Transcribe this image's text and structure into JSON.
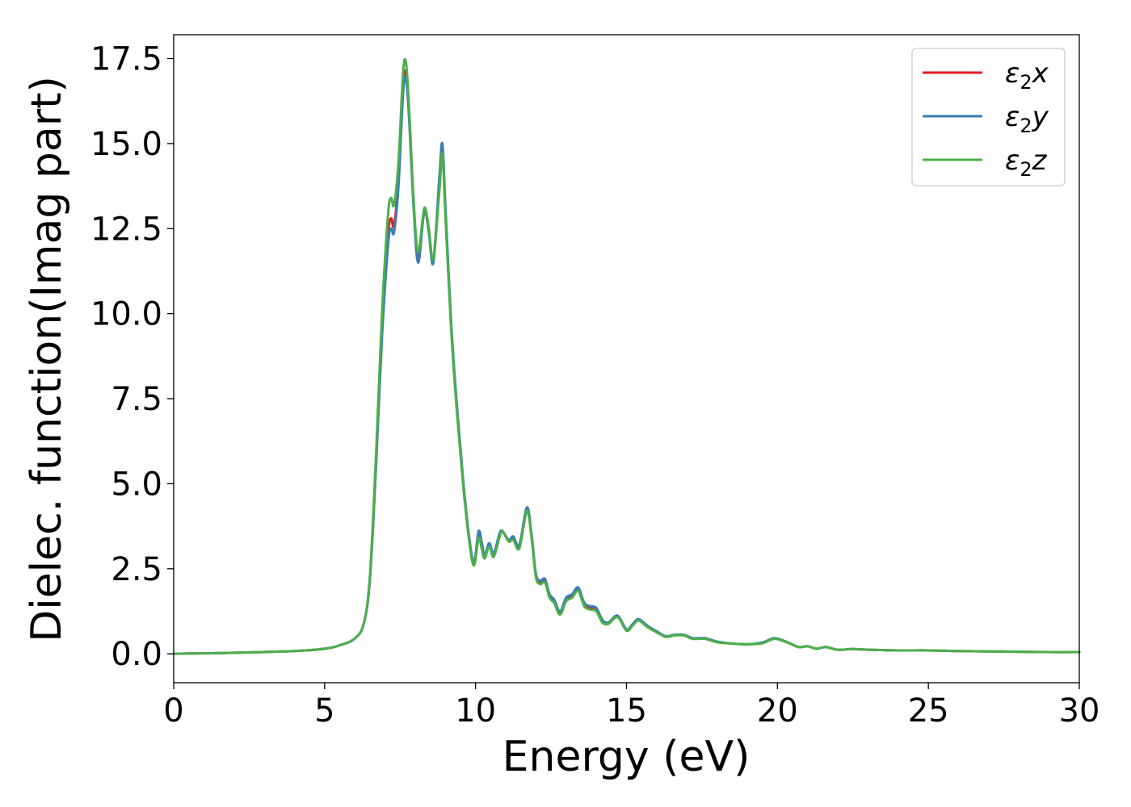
{
  "chart_data": {
    "type": "line",
    "title": "",
    "xlabel": "Energy (eV)",
    "ylabel": "Dielec. function(Imag part)",
    "xlim": [
      0,
      30
    ],
    "ylim": [
      -0.85,
      18.2
    ],
    "x_ticks": [
      0,
      5,
      10,
      15,
      20,
      25,
      30
    ],
    "x_tick_labels": [
      "0",
      "5",
      "10",
      "15",
      "20",
      "25",
      "30"
    ],
    "y_ticks": [
      0.0,
      2.5,
      5.0,
      7.5,
      10.0,
      12.5,
      15.0,
      17.5
    ],
    "y_tick_labels": [
      "0.0",
      "2.5",
      "5.0",
      "7.5",
      "10.0",
      "12.5",
      "15.0",
      "17.5"
    ],
    "grid": false,
    "legend_position": "top-right",
    "series": [
      {
        "name": "ε2x",
        "legend_base": "ε",
        "legend_sub": "2",
        "legend_suffix": "x",
        "color": "#e41a1c",
        "points": [
          [
            0,
            0
          ],
          [
            2,
            0.03
          ],
          [
            4,
            0.08
          ],
          [
            5,
            0.15
          ],
          [
            5.5,
            0.25
          ],
          [
            6,
            0.45
          ],
          [
            6.3,
            0.9
          ],
          [
            6.5,
            2.2
          ],
          [
            6.7,
            5.5
          ],
          [
            6.9,
            9.5
          ],
          [
            7.1,
            12.3
          ],
          [
            7.2,
            12.8
          ],
          [
            7.3,
            12.6
          ],
          [
            7.45,
            14
          ],
          [
            7.6,
            16.8
          ],
          [
            7.7,
            17.0
          ],
          [
            7.8,
            15.8
          ],
          [
            7.95,
            13.2
          ],
          [
            8.1,
            11.6
          ],
          [
            8.3,
            13.0
          ],
          [
            8.45,
            12.5
          ],
          [
            8.6,
            11.5
          ],
          [
            8.8,
            13.8
          ],
          [
            8.9,
            14.9
          ],
          [
            9.0,
            13.0
          ],
          [
            9.2,
            9.5
          ],
          [
            9.4,
            7.0
          ],
          [
            9.6,
            4.9
          ],
          [
            9.8,
            3.3
          ],
          [
            9.95,
            2.65
          ],
          [
            10.1,
            3.5
          ],
          [
            10.2,
            3.2
          ],
          [
            10.3,
            2.85
          ],
          [
            10.45,
            3.2
          ],
          [
            10.6,
            2.9
          ],
          [
            10.8,
            3.5
          ],
          [
            10.9,
            3.6
          ],
          [
            11.1,
            3.3
          ],
          [
            11.25,
            3.4
          ],
          [
            11.45,
            3.15
          ],
          [
            11.7,
            4.25
          ],
          [
            11.85,
            3.5
          ],
          [
            12.0,
            2.3
          ],
          [
            12.15,
            2.1
          ],
          [
            12.3,
            2.15
          ],
          [
            12.45,
            1.7
          ],
          [
            12.6,
            1.55
          ],
          [
            12.8,
            1.2
          ],
          [
            13.0,
            1.6
          ],
          [
            13.2,
            1.7
          ],
          [
            13.4,
            1.9
          ],
          [
            13.6,
            1.45
          ],
          [
            13.8,
            1.35
          ],
          [
            14.0,
            1.3
          ],
          [
            14.2,
            0.95
          ],
          [
            14.4,
            0.9
          ],
          [
            14.7,
            1.1
          ],
          [
            15.0,
            0.7
          ],
          [
            15.2,
            0.85
          ],
          [
            15.4,
            1.0
          ],
          [
            15.7,
            0.8
          ],
          [
            16.0,
            0.65
          ],
          [
            16.3,
            0.5
          ],
          [
            16.6,
            0.55
          ],
          [
            16.9,
            0.55
          ],
          [
            17.2,
            0.45
          ],
          [
            17.6,
            0.45
          ],
          [
            18.0,
            0.35
          ],
          [
            18.5,
            0.3
          ],
          [
            19.0,
            0.28
          ],
          [
            19.5,
            0.32
          ],
          [
            19.9,
            0.45
          ],
          [
            20.3,
            0.35
          ],
          [
            20.7,
            0.2
          ],
          [
            21.0,
            0.22
          ],
          [
            21.3,
            0.15
          ],
          [
            21.6,
            0.2
          ],
          [
            22.0,
            0.12
          ],
          [
            22.5,
            0.14
          ],
          [
            23,
            0.12
          ],
          [
            24,
            0.1
          ],
          [
            25,
            0.1
          ],
          [
            26,
            0.08
          ],
          [
            27,
            0.07
          ],
          [
            28,
            0.06
          ],
          [
            29,
            0.05
          ],
          [
            30,
            0.05
          ]
        ]
      },
      {
        "name": "ε2y",
        "legend_base": "ε",
        "legend_sub": "2",
        "legend_suffix": "y",
        "color": "#377eb8",
        "points": [
          [
            0,
            0
          ],
          [
            2,
            0.03
          ],
          [
            4,
            0.08
          ],
          [
            5,
            0.15
          ],
          [
            5.5,
            0.25
          ],
          [
            6,
            0.45
          ],
          [
            6.3,
            0.9
          ],
          [
            6.5,
            2.2
          ],
          [
            6.7,
            5.5
          ],
          [
            6.9,
            9.3
          ],
          [
            7.1,
            12.0
          ],
          [
            7.2,
            12.5
          ],
          [
            7.3,
            12.4
          ],
          [
            7.45,
            13.8
          ],
          [
            7.6,
            16.5
          ],
          [
            7.7,
            16.9
          ],
          [
            7.8,
            15.7
          ],
          [
            7.95,
            13.1
          ],
          [
            8.1,
            11.5
          ],
          [
            8.3,
            13.0
          ],
          [
            8.45,
            12.4
          ],
          [
            8.6,
            11.5
          ],
          [
            8.8,
            14.0
          ],
          [
            8.9,
            15.0
          ],
          [
            9.0,
            13.2
          ],
          [
            9.2,
            9.6
          ],
          [
            9.4,
            7.1
          ],
          [
            9.6,
            5.0
          ],
          [
            9.8,
            3.35
          ],
          [
            9.95,
            2.7
          ],
          [
            10.1,
            3.6
          ],
          [
            10.2,
            3.3
          ],
          [
            10.3,
            2.9
          ],
          [
            10.45,
            3.25
          ],
          [
            10.6,
            2.95
          ],
          [
            10.8,
            3.55
          ],
          [
            10.9,
            3.6
          ],
          [
            11.1,
            3.35
          ],
          [
            11.25,
            3.45
          ],
          [
            11.45,
            3.2
          ],
          [
            11.7,
            4.3
          ],
          [
            11.85,
            3.55
          ],
          [
            12.0,
            2.35
          ],
          [
            12.15,
            2.15
          ],
          [
            12.3,
            2.2
          ],
          [
            12.45,
            1.75
          ],
          [
            12.6,
            1.6
          ],
          [
            12.8,
            1.25
          ],
          [
            13.0,
            1.65
          ],
          [
            13.2,
            1.75
          ],
          [
            13.4,
            1.95
          ],
          [
            13.6,
            1.5
          ],
          [
            13.8,
            1.4
          ],
          [
            14.0,
            1.35
          ],
          [
            14.2,
            1.0
          ],
          [
            14.4,
            0.92
          ],
          [
            14.7,
            1.12
          ],
          [
            15.0,
            0.72
          ],
          [
            15.2,
            0.87
          ],
          [
            15.4,
            1.02
          ],
          [
            15.7,
            0.82
          ],
          [
            16.0,
            0.66
          ],
          [
            16.3,
            0.52
          ],
          [
            16.6,
            0.56
          ],
          [
            16.9,
            0.56
          ],
          [
            17.2,
            0.46
          ],
          [
            17.6,
            0.46
          ],
          [
            18.0,
            0.36
          ],
          [
            18.5,
            0.3
          ],
          [
            19.0,
            0.28
          ],
          [
            19.5,
            0.33
          ],
          [
            19.9,
            0.46
          ],
          [
            20.3,
            0.35
          ],
          [
            20.7,
            0.2
          ],
          [
            21.0,
            0.22
          ],
          [
            21.3,
            0.15
          ],
          [
            21.6,
            0.2
          ],
          [
            22.0,
            0.12
          ],
          [
            22.5,
            0.14
          ],
          [
            23,
            0.12
          ],
          [
            24,
            0.1
          ],
          [
            25,
            0.1
          ],
          [
            26,
            0.08
          ],
          [
            27,
            0.07
          ],
          [
            28,
            0.06
          ],
          [
            29,
            0.05
          ],
          [
            30,
            0.05
          ]
        ]
      },
      {
        "name": "ε2z",
        "legend_base": "ε",
        "legend_sub": "2",
        "legend_suffix": "z",
        "color": "#4daf4a",
        "points": [
          [
            0,
            0
          ],
          [
            2,
            0.03
          ],
          [
            4,
            0.08
          ],
          [
            5,
            0.15
          ],
          [
            5.5,
            0.25
          ],
          [
            6,
            0.45
          ],
          [
            6.3,
            0.9
          ],
          [
            6.5,
            2.3
          ],
          [
            6.7,
            5.8
          ],
          [
            6.9,
            10.0
          ],
          [
            7.1,
            12.9
          ],
          [
            7.2,
            13.4
          ],
          [
            7.3,
            13.2
          ],
          [
            7.45,
            14.5
          ],
          [
            7.6,
            17.1
          ],
          [
            7.7,
            17.35
          ],
          [
            7.8,
            16.0
          ],
          [
            7.95,
            13.3
          ],
          [
            8.1,
            11.8
          ],
          [
            8.3,
            13.1
          ],
          [
            8.45,
            12.5
          ],
          [
            8.6,
            11.6
          ],
          [
            8.8,
            13.6
          ],
          [
            8.9,
            14.7
          ],
          [
            9.0,
            12.9
          ],
          [
            9.2,
            9.4
          ],
          [
            9.4,
            6.9
          ],
          [
            9.6,
            4.85
          ],
          [
            9.8,
            3.25
          ],
          [
            9.95,
            2.6
          ],
          [
            10.1,
            3.4
          ],
          [
            10.2,
            3.1
          ],
          [
            10.3,
            2.8
          ],
          [
            10.45,
            3.15
          ],
          [
            10.6,
            2.85
          ],
          [
            10.8,
            3.45
          ],
          [
            10.9,
            3.6
          ],
          [
            11.1,
            3.3
          ],
          [
            11.25,
            3.35
          ],
          [
            11.45,
            3.1
          ],
          [
            11.7,
            4.2
          ],
          [
            11.85,
            3.45
          ],
          [
            12.0,
            2.25
          ],
          [
            12.15,
            2.05
          ],
          [
            12.3,
            2.1
          ],
          [
            12.45,
            1.65
          ],
          [
            12.6,
            1.5
          ],
          [
            12.8,
            1.15
          ],
          [
            13.0,
            1.55
          ],
          [
            13.2,
            1.65
          ],
          [
            13.4,
            1.85
          ],
          [
            13.6,
            1.4
          ],
          [
            13.8,
            1.3
          ],
          [
            14.0,
            1.25
          ],
          [
            14.2,
            0.92
          ],
          [
            14.4,
            0.88
          ],
          [
            14.7,
            1.08
          ],
          [
            15.0,
            0.68
          ],
          [
            15.2,
            0.83
          ],
          [
            15.4,
            0.98
          ],
          [
            15.7,
            0.78
          ],
          [
            16.0,
            0.63
          ],
          [
            16.3,
            0.5
          ],
          [
            16.6,
            0.54
          ],
          [
            16.9,
            0.54
          ],
          [
            17.2,
            0.44
          ],
          [
            17.6,
            0.44
          ],
          [
            18.0,
            0.34
          ],
          [
            18.5,
            0.3
          ],
          [
            19.0,
            0.28
          ],
          [
            19.5,
            0.31
          ],
          [
            19.9,
            0.44
          ],
          [
            20.3,
            0.34
          ],
          [
            20.7,
            0.2
          ],
          [
            21.0,
            0.22
          ],
          [
            21.3,
            0.15
          ],
          [
            21.6,
            0.2
          ],
          [
            22.0,
            0.12
          ],
          [
            22.5,
            0.14
          ],
          [
            23,
            0.12
          ],
          [
            24,
            0.1
          ],
          [
            25,
            0.1
          ],
          [
            26,
            0.08
          ],
          [
            27,
            0.07
          ],
          [
            28,
            0.06
          ],
          [
            29,
            0.05
          ],
          [
            30,
            0.05
          ]
        ]
      }
    ]
  }
}
